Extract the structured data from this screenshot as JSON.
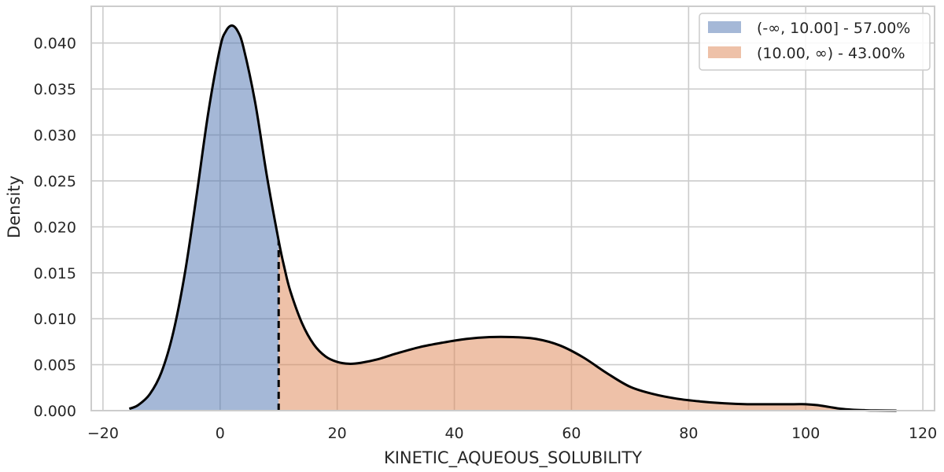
{
  "chart_data": {
    "type": "area",
    "xlabel": "KINETIC_AQUEOUS_SOLUBILITY",
    "ylabel": "Density",
    "xlim": [
      -22,
      122
    ],
    "ylim": [
      0,
      0.044
    ],
    "xticks": [
      -20,
      0,
      20,
      40,
      60,
      80,
      100,
      120
    ],
    "yticks": [
      "0.000",
      "0.005",
      "0.010",
      "0.015",
      "0.020",
      "0.025",
      "0.030",
      "0.035",
      "0.040"
    ],
    "grid": true,
    "threshold": 10.0,
    "threshold_density": 0.0185,
    "legend_position": "top-right",
    "series": [
      {
        "name": "(-∞, 10.00] - 57.00%",
        "color": "#4c72b0"
      },
      {
        "name": "(10.00, ∞) - 43.00%",
        "color": "#dd8452"
      }
    ],
    "curve": {
      "x": [
        -15.5,
        -14,
        -12,
        -10,
        -8,
        -6,
        -4,
        -2,
        0,
        1,
        2,
        3,
        4,
        6,
        8,
        10,
        11,
        12,
        14,
        16,
        18,
        20,
        22,
        24,
        27,
        30,
        34,
        38,
        42,
        46,
        50,
        54,
        58,
        62,
        66,
        70,
        74,
        78,
        82,
        86,
        90,
        94,
        98,
        100,
        102,
        104,
        106,
        108,
        110,
        112,
        115.5
      ],
      "y": [
        0.0002,
        0.0006,
        0.0018,
        0.0042,
        0.0085,
        0.015,
        0.0235,
        0.0325,
        0.0395,
        0.0413,
        0.0419,
        0.0413,
        0.0395,
        0.0335,
        0.0255,
        0.0185,
        0.0155,
        0.013,
        0.0095,
        0.0072,
        0.0059,
        0.0053,
        0.0051,
        0.0052,
        0.0056,
        0.0062,
        0.0069,
        0.0074,
        0.0078,
        0.008,
        0.008,
        0.0078,
        0.0071,
        0.0058,
        0.0041,
        0.0026,
        0.0018,
        0.0013,
        0.001,
        0.0008,
        0.0007,
        0.0007,
        0.0007,
        0.0007,
        0.0006,
        0.0004,
        0.0002,
        0.0001,
        5e-05,
        2e-05,
        0.0
      ]
    }
  }
}
